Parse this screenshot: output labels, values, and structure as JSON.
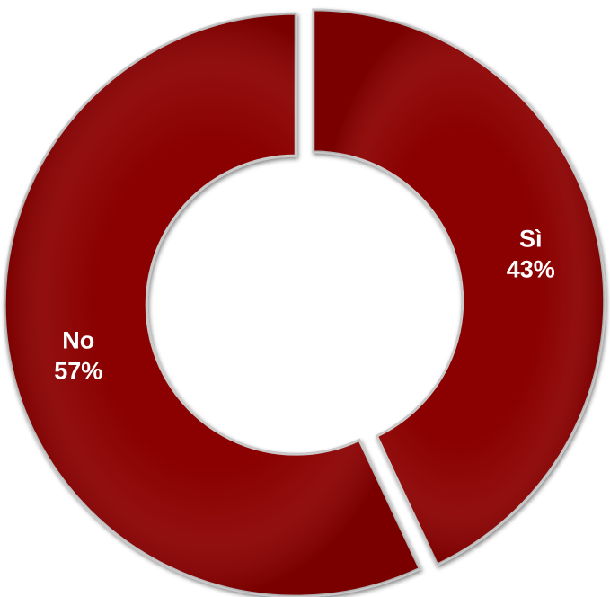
{
  "chart_data": {
    "type": "pie",
    "subtype": "donut",
    "slices": [
      {
        "label": "Sì",
        "value": 43,
        "value_label": "43%",
        "color": "#8b0304"
      },
      {
        "label": "No",
        "value": 57,
        "value_label": "57%",
        "color": "#8b0304"
      }
    ],
    "start": "top",
    "direction": "clockwise",
    "exploded": true,
    "label_color": "#ffffff",
    "ring_edge_color": "#c9c9c9"
  }
}
